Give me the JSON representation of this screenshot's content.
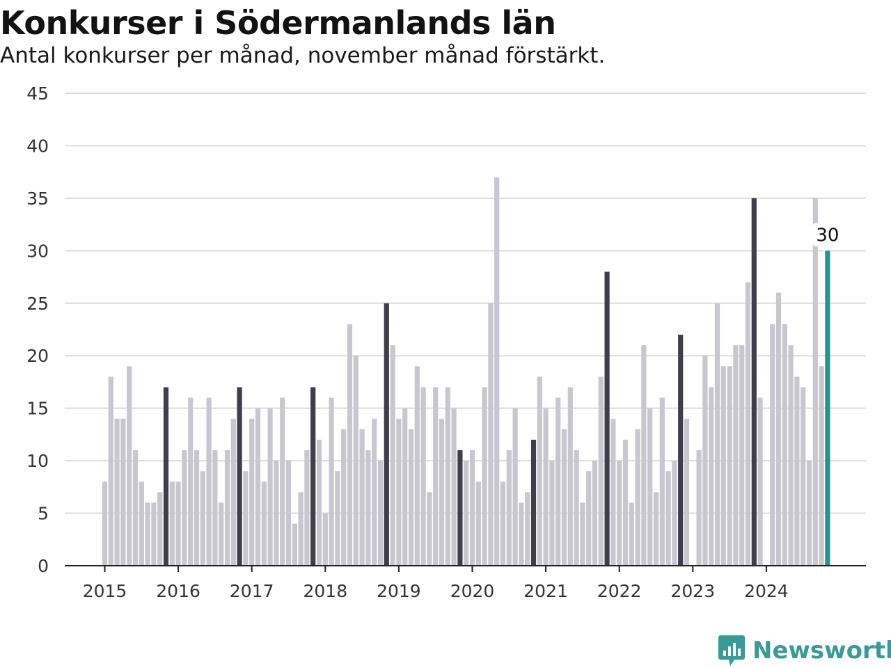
{
  "title": "Konkurser i Södermanlands län",
  "subtitle": "Antal konkurser per månad, november månad förstärkt.",
  "brand": {
    "name": "Newsworthy",
    "color": "#3a9a96",
    "icon": "newsworthy-logo-icon"
  },
  "colors": {
    "regular": "#c8c7cf",
    "november": "#3f3e4b",
    "latest": "#1a9a8e",
    "grid": "#dcdcdc",
    "axis": "#222222"
  },
  "chart_data": {
    "type": "bar",
    "title": "Konkurser i Södermanlands län",
    "subtitle": "Antal konkurser per månad, november månad förstärkt.",
    "xlabel": "",
    "ylabel": "",
    "ylim": [
      0,
      45
    ],
    "yticks": [
      0,
      5,
      10,
      15,
      20,
      25,
      30,
      35,
      40,
      45
    ],
    "xticks": [
      "2015",
      "2016",
      "2017",
      "2018",
      "2019",
      "2020",
      "2021",
      "2022",
      "2023",
      "2024"
    ],
    "grid": true,
    "highlight": "november",
    "series": [
      {
        "year": "2015",
        "values": [
          8,
          18,
          14,
          14,
          19,
          11,
          8,
          6,
          6,
          7,
          17,
          8
        ]
      },
      {
        "year": "2016",
        "values": [
          8,
          11,
          16,
          11,
          9,
          16,
          11,
          6,
          11,
          14,
          17,
          9
        ]
      },
      {
        "year": "2017",
        "values": [
          14,
          15,
          8,
          15,
          10,
          16,
          10,
          4,
          7,
          11,
          17,
          12
        ]
      },
      {
        "year": "2018",
        "values": [
          5,
          16,
          9,
          13,
          23,
          20,
          13,
          11,
          14,
          10,
          25,
          21
        ]
      },
      {
        "year": "2019",
        "values": [
          14,
          15,
          13,
          19,
          17,
          7,
          17,
          14,
          17,
          15,
          11,
          10
        ]
      },
      {
        "year": "2020",
        "values": [
          11,
          8,
          17,
          25,
          37,
          8,
          11,
          15,
          6,
          7,
          12,
          18
        ]
      },
      {
        "year": "2021",
        "values": [
          15,
          10,
          16,
          13,
          17,
          11,
          6,
          9,
          10,
          18,
          28,
          14
        ]
      },
      {
        "year": "2022",
        "values": [
          10,
          12,
          6,
          13,
          21,
          15,
          7,
          16,
          9,
          10,
          22,
          14
        ]
      },
      {
        "year": "2023",
        "values": [
          0,
          11,
          20,
          17,
          25,
          19,
          19,
          21,
          21,
          27,
          35,
          16
        ]
      },
      {
        "year": "2024",
        "values": [
          0,
          23,
          26,
          23,
          21,
          18,
          17,
          10,
          35,
          19,
          30
        ]
      }
    ],
    "annotation": {
      "label": "30",
      "value": 30,
      "period": "2024-11"
    }
  }
}
